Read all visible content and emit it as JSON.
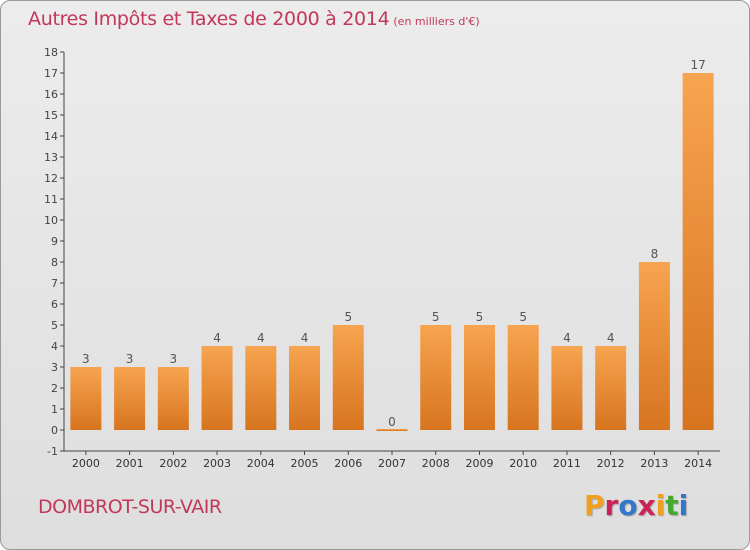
{
  "header": {
    "title": "Autres Impôts et Taxes de 2000 à 2014",
    "unit": "(en milliers d'€)"
  },
  "footer": {
    "commune": "DOMBROT-SUR-VAIR",
    "logo_text": "Proxiti",
    "logo_colors": [
      "#f0a020",
      "#cc2255",
      "#3377cc",
      "#cc2255",
      "#f0a020",
      "#44aa33",
      "#3377cc"
    ]
  },
  "colors": {
    "bar_light": "#f7a450",
    "bar_dark": "#d7741f",
    "text_accent": "#c2385a",
    "axis": "#444444"
  },
  "chart_data": {
    "type": "bar",
    "categories": [
      "2000",
      "2001",
      "2002",
      "2003",
      "2004",
      "2005",
      "2006",
      "2007",
      "2008",
      "2009",
      "2010",
      "2011",
      "2012",
      "2013",
      "2014"
    ],
    "values": [
      3,
      3,
      3,
      4,
      4,
      4,
      5,
      0,
      5,
      5,
      5,
      4,
      4,
      8,
      17
    ],
    "data_labels": [
      "3",
      "3",
      "3",
      "4",
      "4",
      "4",
      "5",
      "0",
      "5",
      "5",
      "5",
      "4",
      "4",
      "8",
      "17"
    ],
    "y_ticks": [
      "-1",
      "0",
      "1",
      "2",
      "3",
      "4",
      "5",
      "6",
      "7",
      "8",
      "9",
      "10",
      "11",
      "12",
      "13",
      "14",
      "15",
      "16",
      "17",
      "18"
    ],
    "ylim": [
      -1,
      18
    ],
    "grid": false,
    "legend": "none"
  }
}
